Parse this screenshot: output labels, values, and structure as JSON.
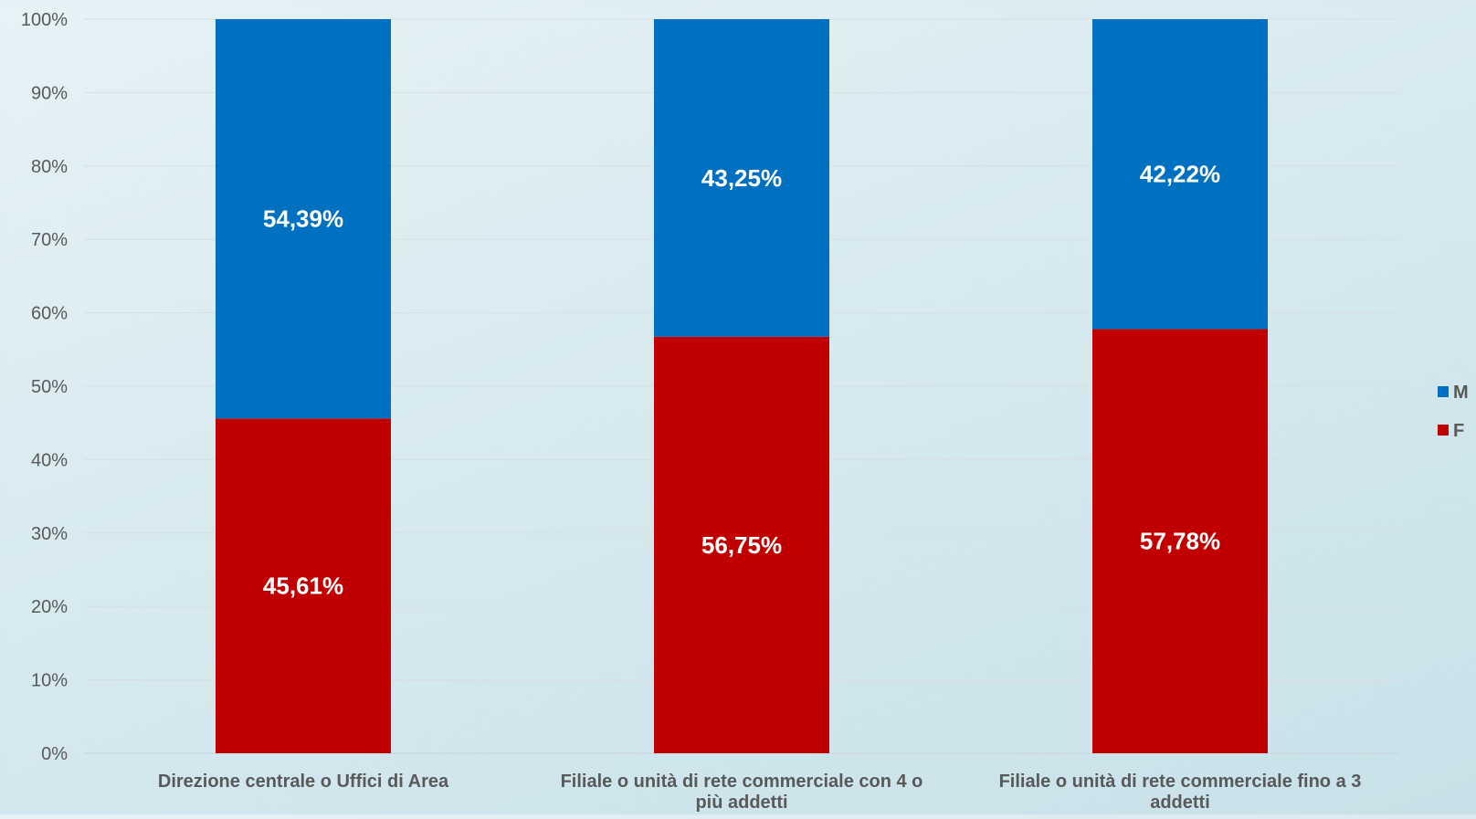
{
  "chart_data": {
    "type": "bar",
    "stacked": true,
    "percent_stacked": true,
    "categories": [
      [
        "Direzione centrale o Uffici di Area"
      ],
      [
        "Filiale o unità di rete commerciale con 4 o",
        "più addetti"
      ],
      [
        "Filiale o unità di rete commerciale fino a 3",
        "addetti"
      ]
    ],
    "series": [
      {
        "name": "F",
        "color": "#c00000",
        "values": [
          45.61,
          56.75,
          57.78
        ],
        "labels": [
          "45,61%",
          "56,75%",
          "57,78%"
        ]
      },
      {
        "name": "M",
        "color": "#0070c0",
        "values": [
          54.39,
          43.25,
          42.22
        ],
        "labels": [
          "54,39%",
          "43,25%",
          "42,22%"
        ]
      }
    ],
    "ylim": [
      0,
      100
    ],
    "yticks": [
      "0%",
      "10%",
      "20%",
      "30%",
      "40%",
      "50%",
      "60%",
      "70%",
      "80%",
      "90%",
      "100%"
    ],
    "grid": true,
    "legend": {
      "position": "right",
      "order": [
        "M",
        "F"
      ]
    },
    "title": "",
    "xlabel": "",
    "ylabel": ""
  }
}
